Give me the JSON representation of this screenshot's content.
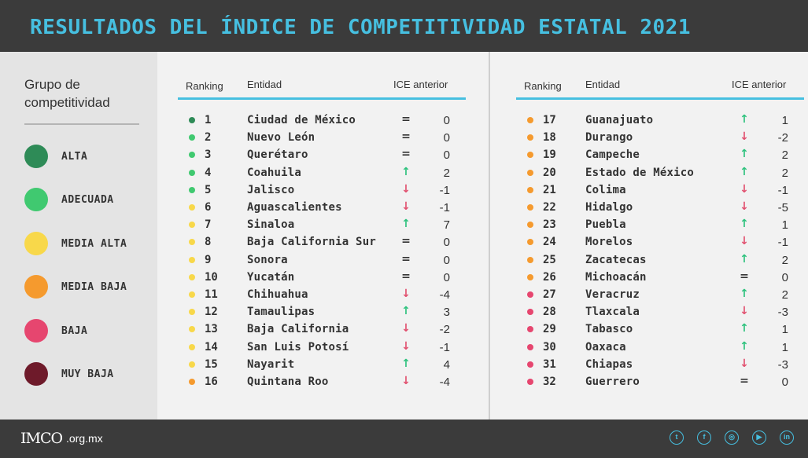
{
  "title": "RESULTADOS DEL ÍNDICE DE COMPETITIVIDAD ESTATAL 2021",
  "legend": {
    "title_line1": "Grupo de",
    "title_line2": "competitividad",
    "items": [
      {
        "label": "ALTA",
        "color": "#2e8b57"
      },
      {
        "label": "ADECUADA",
        "color": "#40c970"
      },
      {
        "label": "MEDIA ALTA",
        "color": "#f8d84a"
      },
      {
        "label": "MEDIA BAJA",
        "color": "#f59a2e"
      },
      {
        "label": "BAJA",
        "color": "#e6466f"
      },
      {
        "label": "MUY BAJA",
        "color": "#6e1a2a"
      }
    ]
  },
  "table": {
    "headers": {
      "ranking": "Ranking",
      "entidad": "Entidad",
      "ice_anterior": "ICE anterior"
    },
    "left": [
      {
        "rank": "1",
        "entidad": "Ciudad de México",
        "trend": "eq",
        "symbol": "=",
        "value": "0",
        "color": "#2e8b57"
      },
      {
        "rank": "2",
        "entidad": "Nuevo León",
        "trend": "eq",
        "symbol": "=",
        "value": "0",
        "color": "#40c970"
      },
      {
        "rank": "3",
        "entidad": "Querétaro",
        "trend": "eq",
        "symbol": "=",
        "value": "0",
        "color": "#40c970"
      },
      {
        "rank": "4",
        "entidad": "Coahuila",
        "trend": "up",
        "symbol": "↑",
        "value": "2",
        "color": "#40c970"
      },
      {
        "rank": "5",
        "entidad": "Jalisco",
        "trend": "down",
        "symbol": "↓",
        "value": "-1",
        "color": "#40c970"
      },
      {
        "rank": "6",
        "entidad": "Aguascalientes",
        "trend": "down",
        "symbol": "↓",
        "value": "-1",
        "color": "#f8d84a"
      },
      {
        "rank": "7",
        "entidad": "Sinaloa",
        "trend": "up",
        "symbol": "↑",
        "value": "7",
        "color": "#f8d84a"
      },
      {
        "rank": "8",
        "entidad": "Baja California Sur",
        "trend": "eq",
        "symbol": "=",
        "value": "0",
        "color": "#f8d84a"
      },
      {
        "rank": "9",
        "entidad": "Sonora",
        "trend": "eq",
        "symbol": "=",
        "value": "0",
        "color": "#f8d84a"
      },
      {
        "rank": "10",
        "entidad": "Yucatán",
        "trend": "eq",
        "symbol": "=",
        "value": "0",
        "color": "#f8d84a"
      },
      {
        "rank": "11",
        "entidad": "Chihuahua",
        "trend": "down",
        "symbol": "↓",
        "value": "-4",
        "color": "#f8d84a"
      },
      {
        "rank": "12",
        "entidad": "Tamaulipas",
        "trend": "up",
        "symbol": "↑",
        "value": "3",
        "color": "#f8d84a"
      },
      {
        "rank": "13",
        "entidad": "Baja California",
        "trend": "down",
        "symbol": "↓",
        "value": "-2",
        "color": "#f8d84a"
      },
      {
        "rank": "14",
        "entidad": "San Luis Potosí",
        "trend": "down",
        "symbol": "↓",
        "value": "-1",
        "color": "#f8d84a"
      },
      {
        "rank": "15",
        "entidad": "Nayarit",
        "trend": "up",
        "symbol": "↑",
        "value": "4",
        "color": "#f8d84a"
      },
      {
        "rank": "16",
        "entidad": "Quintana Roo",
        "trend": "down",
        "symbol": "↓",
        "value": "-4",
        "color": "#f59a2e"
      }
    ],
    "right": [
      {
        "rank": "17",
        "entidad": "Guanajuato",
        "trend": "up",
        "symbol": "↑",
        "value": "1",
        "color": "#f59a2e"
      },
      {
        "rank": "18",
        "entidad": "Durango",
        "trend": "down",
        "symbol": "↓",
        "value": "-2",
        "color": "#f59a2e"
      },
      {
        "rank": "19",
        "entidad": "Campeche",
        "trend": "up",
        "symbol": "↑",
        "value": "2",
        "color": "#f59a2e"
      },
      {
        "rank": "20",
        "entidad": "Estado de México",
        "trend": "up",
        "symbol": "↑",
        "value": "2",
        "color": "#f59a2e"
      },
      {
        "rank": "21",
        "entidad": "Colima",
        "trend": "down",
        "symbol": "↓",
        "value": "-1",
        "color": "#f59a2e"
      },
      {
        "rank": "22",
        "entidad": "Hidalgo",
        "trend": "down",
        "symbol": "↓",
        "value": "-5",
        "color": "#f59a2e"
      },
      {
        "rank": "23",
        "entidad": "Puebla",
        "trend": "up",
        "symbol": "↑",
        "value": "1",
        "color": "#f59a2e"
      },
      {
        "rank": "24",
        "entidad": "Morelos",
        "trend": "down",
        "symbol": "↓",
        "value": "-1",
        "color": "#f59a2e"
      },
      {
        "rank": "25",
        "entidad": "Zacatecas",
        "trend": "up",
        "symbol": "↑",
        "value": "2",
        "color": "#f59a2e"
      },
      {
        "rank": "26",
        "entidad": "Michoacán",
        "trend": "eq",
        "symbol": "=",
        "value": "0",
        "color": "#f59a2e"
      },
      {
        "rank": "27",
        "entidad": "Veracruz",
        "trend": "up",
        "symbol": "↑",
        "value": "2",
        "color": "#e6466f"
      },
      {
        "rank": "28",
        "entidad": "Tlaxcala",
        "trend": "down",
        "symbol": "↓",
        "value": "-3",
        "color": "#e6466f"
      },
      {
        "rank": "29",
        "entidad": "Tabasco",
        "trend": "up",
        "symbol": "↑",
        "value": "1",
        "color": "#e6466f"
      },
      {
        "rank": "30",
        "entidad": "Oaxaca",
        "trend": "up",
        "symbol": "↑",
        "value": "1",
        "color": "#e6466f"
      },
      {
        "rank": "31",
        "entidad": "Chiapas",
        "trend": "down",
        "symbol": "↓",
        "value": "-3",
        "color": "#e6466f"
      },
      {
        "rank": "32",
        "entidad": "Guerrero",
        "trend": "eq",
        "symbol": "=",
        "value": "0",
        "color": "#e6466f"
      }
    ]
  },
  "footer": {
    "logo": "IMCO",
    "domain": ".org.mx",
    "social": [
      "twitter-icon",
      "facebook-icon",
      "instagram-icon",
      "youtube-icon",
      "linkedin-icon"
    ]
  },
  "colors": {
    "accent": "#46bfe0",
    "header_bg": "#3b3b3b",
    "up": "#2ec27e",
    "down": "#e1506f"
  }
}
